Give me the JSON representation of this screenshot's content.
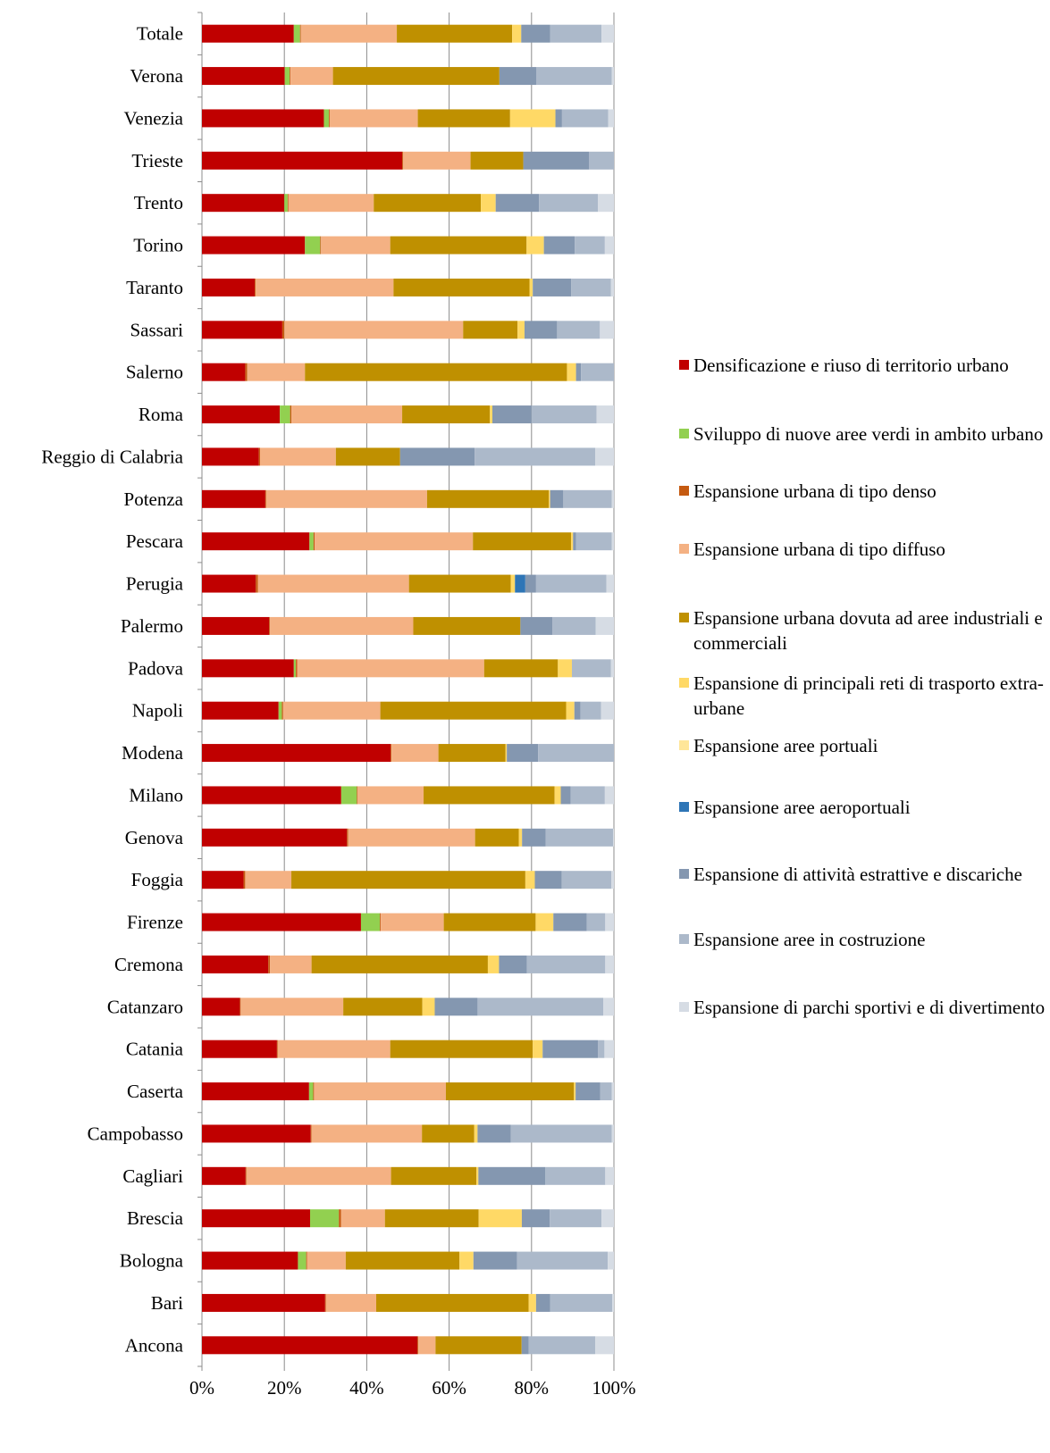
{
  "chart_data": {
    "type": "bar",
    "orientation": "horizontal",
    "stacked": "percent",
    "categories": [
      "Totale",
      "Verona",
      "Venezia",
      "Trieste",
      "Trento",
      "Torino",
      "Taranto",
      "Sassari",
      "Salerno",
      "Roma",
      "Reggio di Calabria",
      "Potenza",
      "Pescara",
      "Perugia",
      "Palermo",
      "Padova",
      "Napoli",
      "Modena",
      "Milano",
      "Genova",
      "Foggia",
      "Firenze",
      "Cremona",
      "Catanzaro",
      "Catania",
      "Caserta",
      "Campobasso",
      "Cagliari",
      "Brescia",
      "Bologna",
      "Bari",
      "Ancona"
    ],
    "series": [
      {
        "name": "Densificazione e riuso di territorio urbano",
        "color": "#c00000",
        "values": [
          22.3,
          20.1,
          29.6,
          48.6,
          20.0,
          25.0,
          12.8,
          19.5,
          10.5,
          18.9,
          13.8,
          15.4,
          26.3,
          13.0,
          16.3,
          22.3,
          18.6,
          45.8,
          33.8,
          35.2,
          10.1,
          38.6,
          16.1,
          9.2,
          18.2,
          26.0,
          26.4,
          10.6,
          26.3,
          23.3,
          29.9,
          52.3
        ]
      },
      {
        "name": "Sviluppo di nuove aree verdi in ambito urbano",
        "color": "#92d050",
        "values": [
          1.5,
          1.2,
          1.2,
          0,
          0.8,
          3.7,
          0,
          0,
          0,
          2.5,
          0,
          0,
          1.0,
          0,
          0,
          0.5,
          0.8,
          0,
          3.8,
          0,
          0,
          4.6,
          0,
          0,
          0,
          1.0,
          0,
          0,
          7.0,
          2.0,
          0,
          0
        ]
      },
      {
        "name": "Espansione urbana di tipo denso",
        "color": "#c55a11",
        "values": [
          0.2,
          0.2,
          0.2,
          0.2,
          0.2,
          0.2,
          0.2,
          0.5,
          0.5,
          0.3,
          0.3,
          0.2,
          0.3,
          0.5,
          0.2,
          0.3,
          0.3,
          0.2,
          0.2,
          0.3,
          0.4,
          0.2,
          0.4,
          0.2,
          0.2,
          0.2,
          0.2,
          0.2,
          0.5,
          0.2,
          0.2,
          0.2
        ]
      },
      {
        "name": "Espansione urbana di tipo diffuso",
        "color": "#f4b183",
        "values": [
          23.3,
          10.3,
          21.4,
          16.4,
          20.7,
          16.8,
          33.5,
          43.4,
          14.0,
          26.9,
          18.4,
          39.1,
          38.7,
          36.5,
          34.8,
          45.4,
          23.6,
          11.4,
          16.0,
          30.8,
          11.2,
          15.3,
          10.1,
          24.9,
          27.3,
          32.0,
          26.8,
          35.1,
          10.7,
          9.4,
          12.2,
          4.2
        ]
      },
      {
        "name": "Espansione urbana dovuta ad aree industriali e commerciali",
        "color": "#bf9000",
        "values": [
          28.0,
          40.4,
          22.4,
          12.8,
          26.0,
          33.1,
          33.0,
          13.2,
          63.6,
          21.3,
          15.6,
          29.6,
          24.0,
          24.6,
          26.0,
          17.9,
          45.1,
          16.3,
          31.8,
          10.6,
          56.8,
          22.3,
          42.8,
          19.2,
          34.6,
          31.1,
          12.7,
          20.7,
          22.8,
          27.6,
          37.0,
          20.9
        ]
      },
      {
        "name": "Espansione di principali reti di trasporto extra-urbane",
        "color": "#ffd966",
        "values": [
          2.2,
          0,
          11.0,
          0,
          3.6,
          4.2,
          0.8,
          1.7,
          2.2,
          0.6,
          0,
          0.3,
          0.5,
          1.0,
          0,
          3.4,
          2.0,
          0.3,
          1.5,
          0.8,
          2.3,
          4.3,
          2.7,
          3.0,
          2.4,
          0.4,
          0.8,
          0.5,
          10.5,
          3.4,
          1.8,
          0
        ]
      },
      {
        "name": "Espansione aree portuali",
        "color": "#ffe699",
        "values": [
          0,
          0,
          0,
          0,
          0,
          0,
          0,
          0,
          0,
          0,
          0,
          0,
          0,
          0,
          0,
          0,
          0,
          0,
          0,
          0,
          0,
          0,
          0,
          0,
          0,
          0,
          0,
          0,
          0,
          0,
          0,
          0
        ]
      },
      {
        "name": "Espansione aree aeroportuali",
        "color": "#2e75b6",
        "values": [
          0,
          0,
          0,
          0,
          0,
          0,
          0,
          0,
          0,
          0,
          0,
          0,
          0,
          2.5,
          0,
          0,
          0,
          0,
          0,
          0,
          0,
          0,
          0,
          0,
          0,
          0,
          0,
          0,
          0,
          0,
          0,
          0
        ]
      },
      {
        "name": "Espansione di attività estrattive e discariche",
        "color": "#8497b0",
        "values": [
          7.0,
          9.0,
          1.6,
          16.0,
          10.5,
          7.5,
          9.3,
          7.9,
          1.2,
          9.5,
          18.1,
          3.2,
          0.7,
          2.6,
          7.8,
          0,
          1.5,
          7.6,
          2.4,
          5.7,
          6.5,
          8.1,
          6.8,
          10.4,
          13.4,
          6.0,
          8.1,
          16.2,
          6.8,
          10.6,
          3.4,
          1.7
        ]
      },
      {
        "name": "Espansione aree in costruzione",
        "color": "#acb9ca",
        "values": [
          12.5,
          18.3,
          11.2,
          6.0,
          14.3,
          7.3,
          9.7,
          10.4,
          8.0,
          15.8,
          29.3,
          11.8,
          8.8,
          17.0,
          10.5,
          9.5,
          5.0,
          18.4,
          8.3,
          16.4,
          12.1,
          4.5,
          19.0,
          30.5,
          1.6,
          2.8,
          24.5,
          14.6,
          12.6,
          22.0,
          15.1,
          16.2
        ]
      },
      {
        "name": "Espansione di parchi sportivi e di divertimento",
        "color": "#d6dce4",
        "values": [
          3.0,
          0.5,
          1.4,
          0,
          3.9,
          2.2,
          0.7,
          3.4,
          0,
          4.2,
          4.5,
          0.5,
          0.5,
          1.8,
          4.4,
          0.7,
          3.1,
          0,
          2.2,
          0.2,
          0.6,
          2.1,
          2.1,
          2.6,
          2.3,
          0.5,
          0.5,
          2.1,
          3.0,
          1.5,
          0.4,
          4.5
        ]
      }
    ],
    "x_ticks": [
      "0%",
      "20%",
      "40%",
      "60%",
      "80%",
      "100%"
    ],
    "xlim": [
      0,
      100
    ],
    "grid": true,
    "legend": "right",
    "title": "",
    "xlabel": "",
    "ylabel": ""
  }
}
